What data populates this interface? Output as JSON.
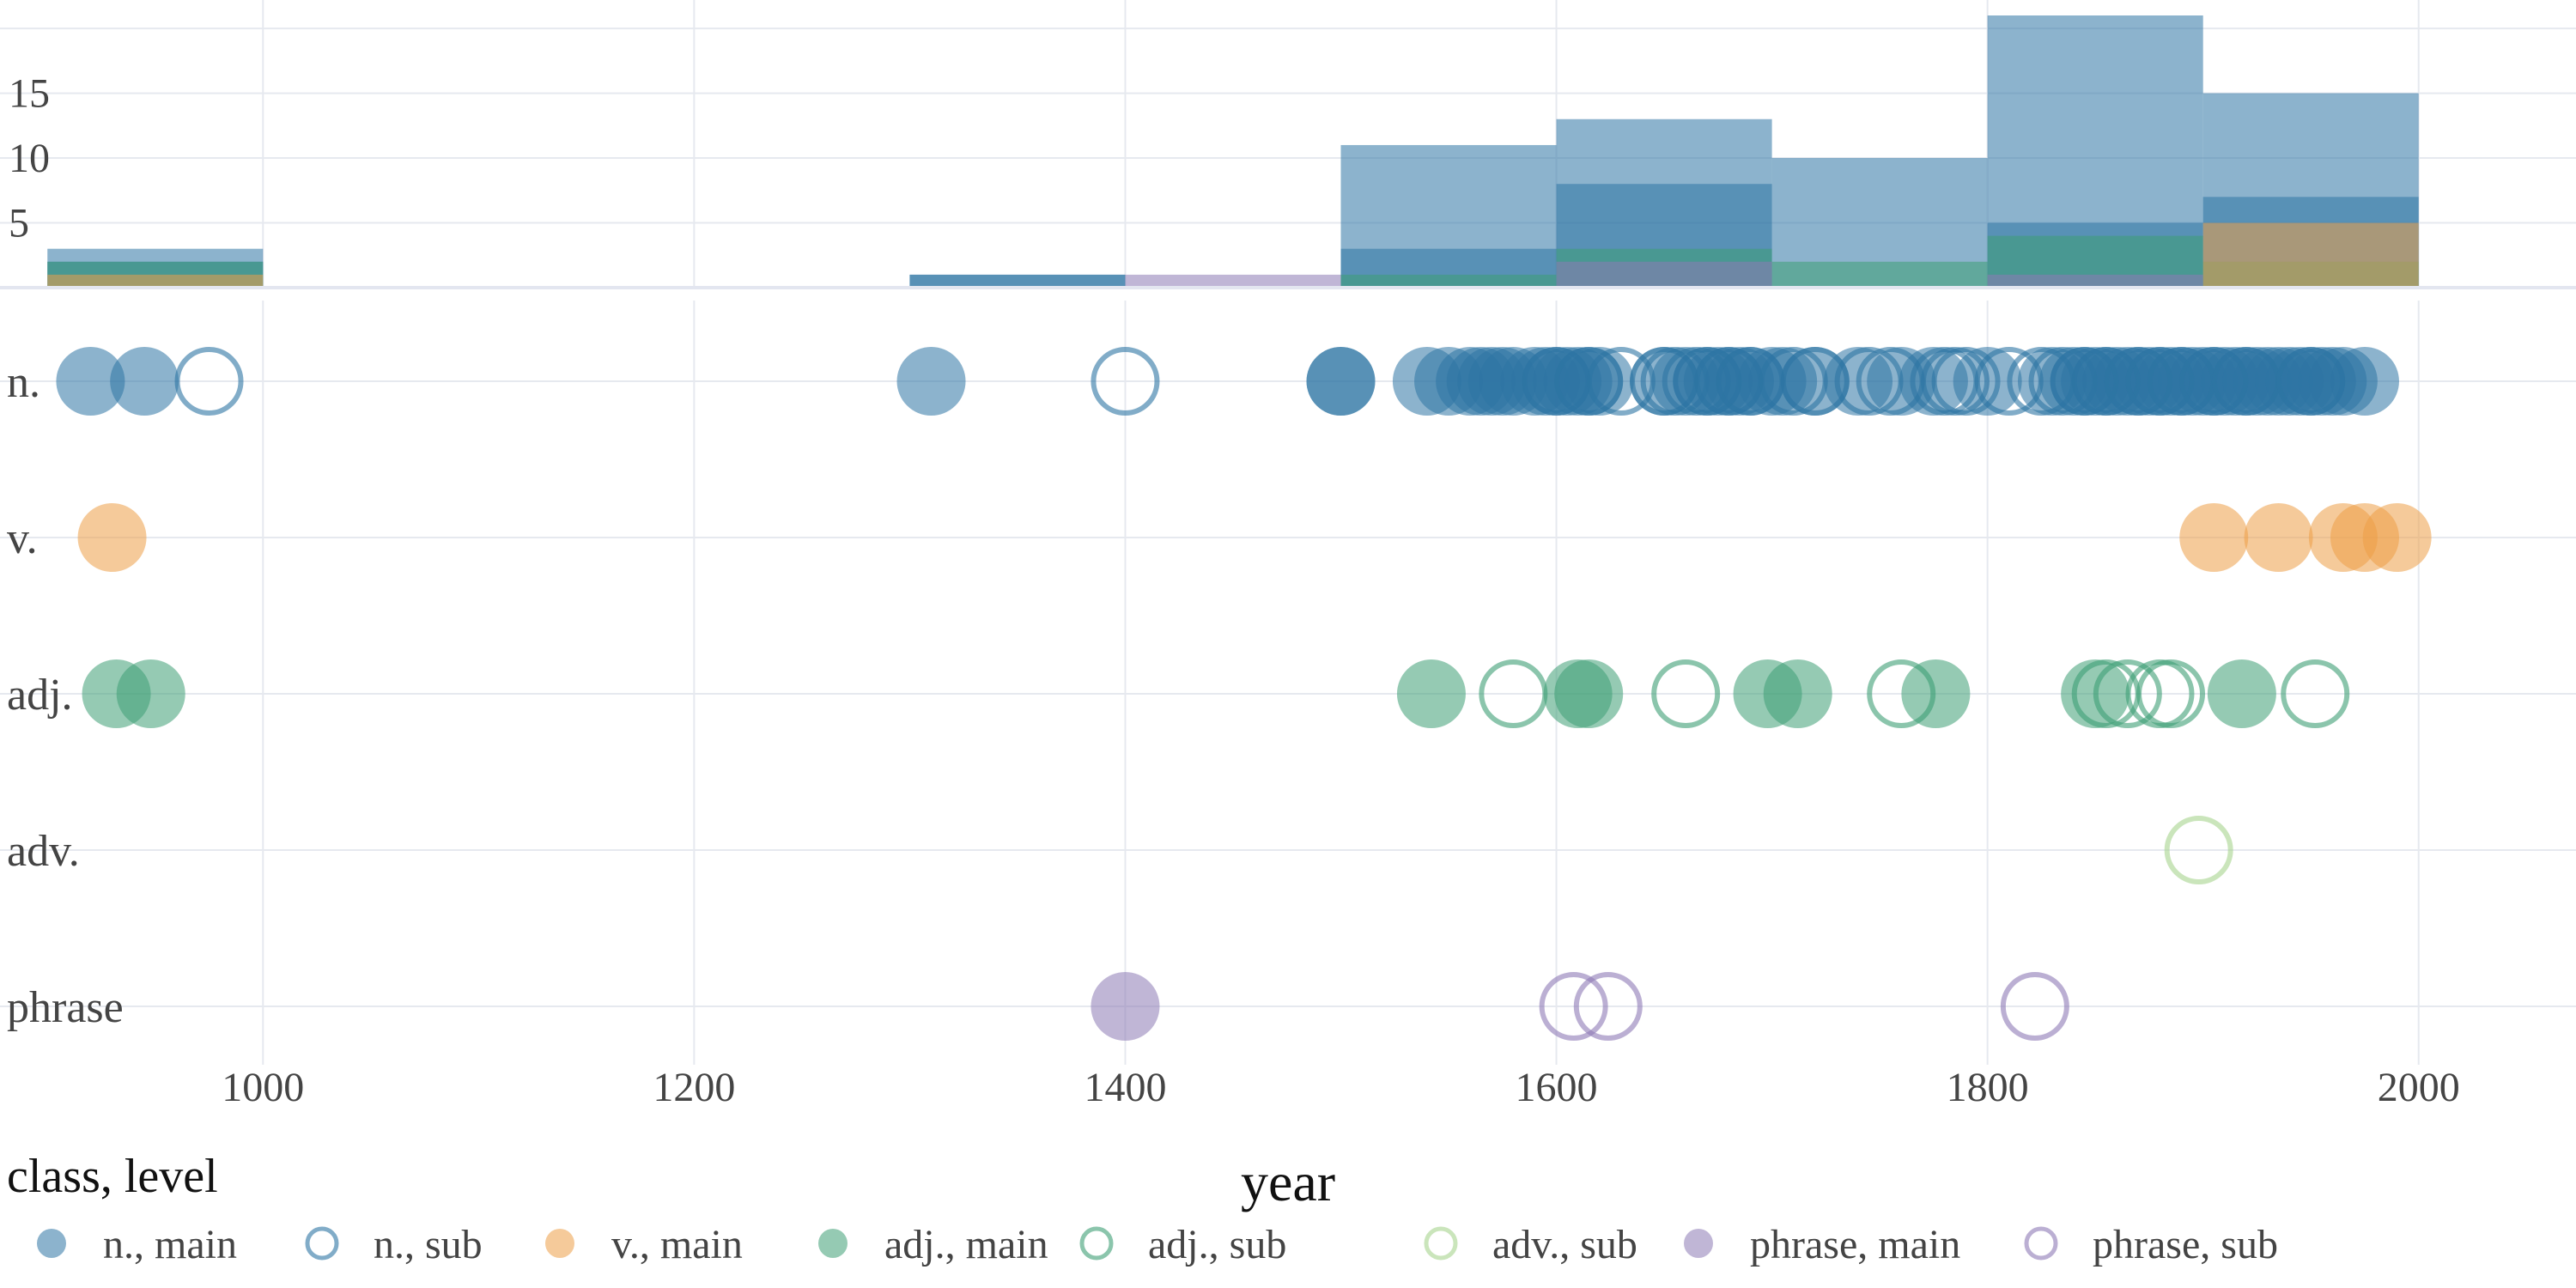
{
  "colors": {
    "n.": "#2d74a4",
    "v.": "#ec9f47",
    "adj.": "#3e9e75",
    "adv.": "#a7d48e",
    "phrase": "#8d7ab5",
    "grid": "#e6e9ef",
    "text": "#444444"
  },
  "chart_data": [
    {
      "type": "bar",
      "panel": "histogram (stacked overlay by class)",
      "x_bins": [
        [
          900,
          1000
        ],
        [
          1000,
          1100
        ],
        [
          1100,
          1200
        ],
        [
          1200,
          1300
        ],
        [
          1300,
          1400
        ],
        [
          1400,
          1500
        ],
        [
          1500,
          1600
        ],
        [
          1600,
          1700
        ],
        [
          1700,
          1800
        ],
        [
          1800,
          1900
        ],
        [
          1900,
          2000
        ]
      ],
      "series": [
        {
          "class": "n.",
          "level": "all",
          "values": [
            3,
            0,
            0,
            0,
            1,
            0,
            11,
            13,
            10,
            21,
            15
          ]
        },
        {
          "class": "n.",
          "level": "main",
          "values": [
            2,
            0,
            0,
            0,
            1,
            0,
            3,
            8,
            0,
            5,
            7
          ]
        },
        {
          "class": "adj.",
          "level": "all",
          "values": [
            2,
            0,
            0,
            0,
            0,
            0,
            1,
            3,
            2,
            4,
            2
          ]
        },
        {
          "class": "v.",
          "level": "all",
          "values": [
            1,
            0,
            0,
            0,
            0,
            0,
            0,
            0,
            0,
            0,
            5
          ]
        },
        {
          "class": "phrase",
          "level": "all",
          "values": [
            0,
            0,
            0,
            0,
            0,
            1,
            0,
            2,
            0,
            1,
            0
          ]
        }
      ],
      "y_ticks": [
        "5",
        "10",
        "15"
      ],
      "ylim": [
        0,
        21
      ]
    },
    {
      "type": "scatter",
      "panel": "points by class",
      "categories": [
        "n.",
        "v.",
        "adj.",
        "adv.",
        "phrase"
      ],
      "series": [
        {
          "class": "n.",
          "level": "main",
          "x": [
            920,
            945,
            1310,
            1500,
            1500,
            1540,
            1550,
            1560,
            1565,
            1570,
            1575,
            1580,
            1590,
            1595,
            1600,
            1605,
            1610,
            1615,
            1620,
            1650,
            1660,
            1670,
            1675,
            1680,
            1685,
            1690,
            1700,
            1705,
            1720,
            1740,
            1760,
            1775,
            1800,
            1830,
            1840,
            1845,
            1850,
            1855,
            1860,
            1865,
            1870,
            1875,
            1880,
            1885,
            1890,
            1895,
            1900,
            1905,
            1910,
            1915,
            1920,
            1925,
            1930,
            1935,
            1940,
            1945,
            1950,
            1955,
            1960,
            1965,
            1975
          ]
        },
        {
          "class": "n.",
          "level": "sub",
          "x": [
            975,
            1400,
            1600,
            1615,
            1630,
            1650,
            1655,
            1665,
            1670,
            1680,
            1690,
            1710,
            1720,
            1745,
            1755,
            1780,
            1785,
            1790,
            1810,
            1825,
            1835,
            1845,
            1855,
            1870,
            1880,
            1890,
            1905,
            1920,
            1950
          ]
        },
        {
          "class": "v.",
          "level": "main",
          "x": [
            930,
            1905,
            1935,
            1965,
            1975,
            1990
          ]
        },
        {
          "class": "adj.",
          "level": "main",
          "x": [
            932,
            948,
            1542,
            1610,
            1615,
            1698,
            1712,
            1776,
            1850,
            1918
          ]
        },
        {
          "class": "adj.",
          "level": "sub",
          "x": [
            1580,
            1660,
            1760,
            1855,
            1865,
            1880,
            1885,
            1952
          ]
        },
        {
          "class": "adv.",
          "level": "sub",
          "x": [
            1898
          ]
        },
        {
          "class": "phrase",
          "level": "main",
          "x": [
            1400
          ]
        },
        {
          "class": "phrase",
          "level": "sub",
          "x": [
            1608,
            1624,
            1822
          ]
        }
      ],
      "x_ticks": [
        "1000",
        "1200",
        "1400",
        "1600",
        "1800",
        "2000"
      ],
      "xlim": [
        878,
        2073
      ],
      "xlabel": "year",
      "grid": true
    }
  ],
  "legend": {
    "title": "class, level",
    "placement": "bottom",
    "items": [
      {
        "label": "n., main",
        "class": "n.",
        "filled": true
      },
      {
        "label": "n., sub",
        "class": "n.",
        "filled": false
      },
      {
        "label": "v., main",
        "class": "v.",
        "filled": true
      },
      {
        "label": "adj., main",
        "class": "adj.",
        "filled": true
      },
      {
        "label": "adj., sub",
        "class": "adj.",
        "filled": false
      },
      {
        "label": "adv., sub",
        "class": "adv.",
        "filled": false
      },
      {
        "label": "phrase, main",
        "class": "phrase",
        "filled": true
      },
      {
        "label": "phrase, sub",
        "class": "phrase",
        "filled": false
      }
    ]
  }
}
